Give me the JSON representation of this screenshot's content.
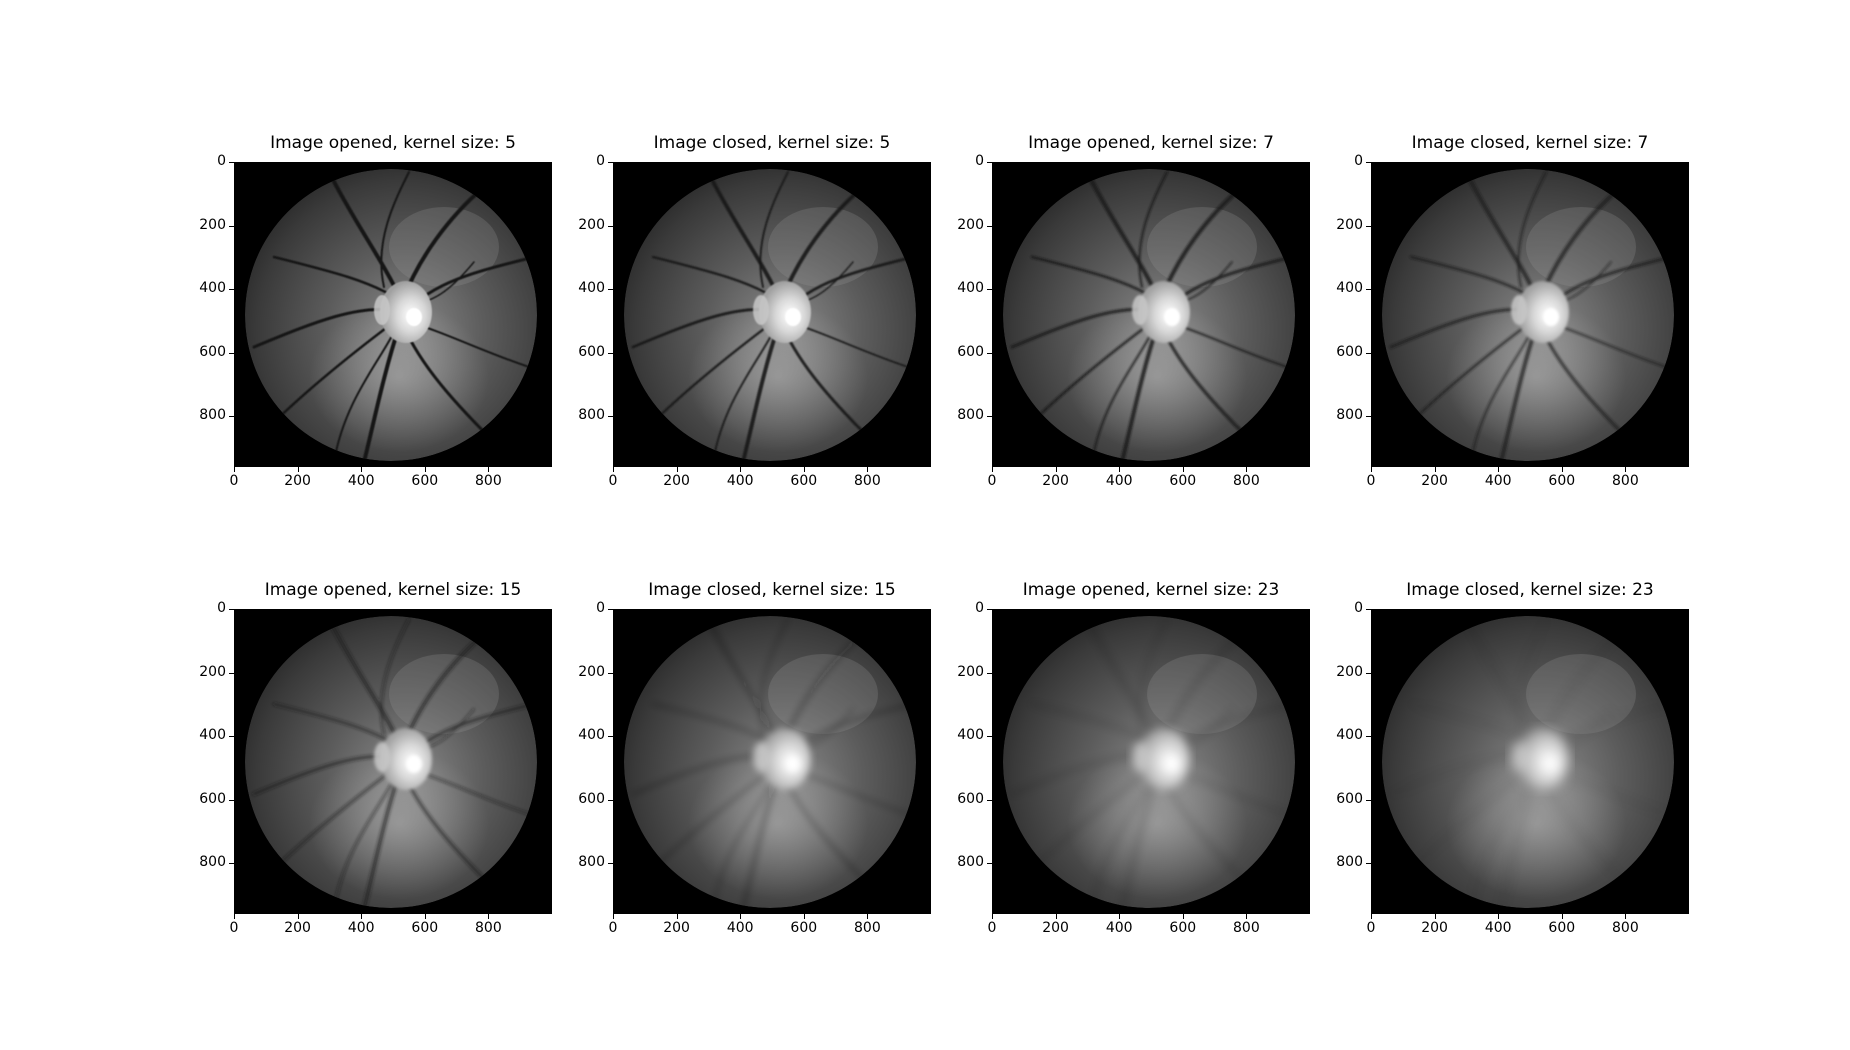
{
  "figure": {
    "panels": [
      {
        "title": "Image opened, kernel size: 5",
        "blur": 0.6,
        "vessels": 1.0,
        "blocky": 0
      },
      {
        "title": "Image closed, kernel size: 5",
        "blur": 0.8,
        "vessels": 0.9,
        "blocky": 0
      },
      {
        "title": "Image opened, kernel size: 7",
        "blur": 1.0,
        "vessels": 0.85,
        "blocky": 0
      },
      {
        "title": "Image closed, kernel size: 7",
        "blur": 1.3,
        "vessels": 0.75,
        "blocky": 0
      },
      {
        "title": "Image opened, kernel size: 15",
        "blur": 1.6,
        "vessels": 0.65,
        "blocky": 0
      },
      {
        "title": "Image closed, kernel size: 15",
        "blur": 3.5,
        "vessels": 0.25,
        "blocky": 1
      },
      {
        "title": "Image opened, kernel size: 23",
        "blur": 4.5,
        "vessels": 0.15,
        "blocky": 2
      },
      {
        "title": "Image closed, kernel size: 23",
        "blur": 5.5,
        "vessels": 0.08,
        "blocky": 3
      }
    ],
    "axes": {
      "x_ticks": [
        "0",
        "200",
        "400",
        "600",
        "800"
      ],
      "y_ticks": [
        "0",
        "200",
        "400",
        "600",
        "800"
      ],
      "x_tick_values": [
        0,
        200,
        400,
        600,
        800
      ],
      "y_tick_values": [
        0,
        200,
        400,
        600,
        800
      ],
      "x_range": [
        0,
        1000
      ],
      "y_range": [
        0,
        960
      ]
    },
    "colors": {
      "background": "#000000",
      "fundus": "#6b6b6b",
      "disc": "#e8e8e8"
    }
  }
}
